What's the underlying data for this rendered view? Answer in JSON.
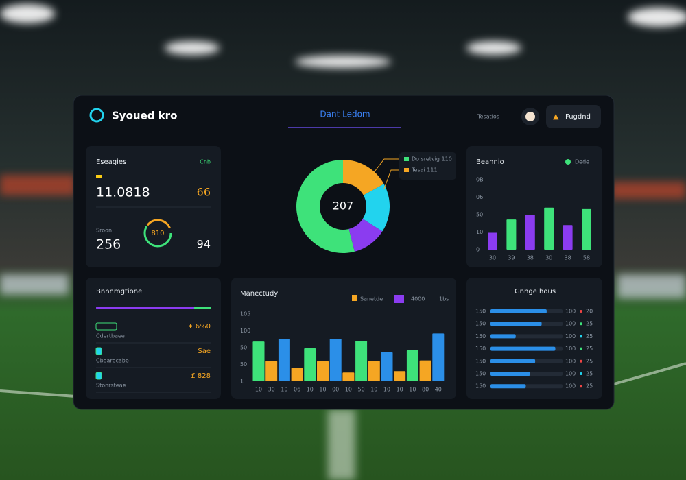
{
  "header": {
    "brand": "Syoued kro",
    "tab": "Dant Ledom",
    "info": "Tesatios",
    "button": "Fugdnd"
  },
  "stats": {
    "title": "Eseagies",
    "badge": "Cnb",
    "value1": "11.0818",
    "value1b": "66",
    "label2": "Sroon",
    "value2": "256",
    "ring": "810",
    "value2b": "94"
  },
  "donut": {
    "center": "207",
    "legend": [
      "Do sretvig 110",
      "Tesai 111"
    ],
    "segments": [
      {
        "color": "#f5a623",
        "value": 17
      },
      {
        "color": "#22d3ee",
        "value": 17
      },
      {
        "color": "#8b3cf0",
        "value": 12
      },
      {
        "color": "#3ee27a",
        "value": 54
      }
    ]
  },
  "pairs": {
    "title": "Beannio",
    "legend": "Dede",
    "axis_labels": [
      "0B",
      "06",
      "50",
      "10",
      "0"
    ],
    "ylim": [
      0,
      100
    ],
    "bars": [
      {
        "label": "30",
        "color": "#8b3cf0",
        "value": 24
      },
      {
        "label": "39",
        "color": "#3ee27a",
        "value": 43
      },
      {
        "label": "38",
        "color": "#8b3cf0",
        "value": 50
      },
      {
        "label": "30",
        "color": "#3ee27a",
        "value": 60
      },
      {
        "label": "38",
        "color": "#8b3cf0",
        "value": 35
      },
      {
        "label": "58",
        "color": "#3ee27a",
        "value": 58
      }
    ]
  },
  "list": {
    "title": "Bnnnmgtione",
    "rows": [
      {
        "left": "Cdertbaee",
        "right": "₤ 6%0"
      },
      {
        "left": "Cboarecabe",
        "right": "Sae"
      },
      {
        "left": "Stonrsteae",
        "right": "₤ 828"
      }
    ]
  },
  "monthly": {
    "title": "Manectudy",
    "legend": [
      {
        "name": "Sanetde",
        "color": "#f5a623"
      },
      {
        "name": "4000",
        "color": "#8b3cf0"
      }
    ],
    "note": "1bs",
    "axis_labels": [
      "105",
      "100",
      "50",
      "50",
      "1"
    ],
    "ylim": [
      0,
      100
    ],
    "bars": [
      {
        "label": "10",
        "color": "#3ee27a",
        "value": 59
      },
      {
        "label": "30",
        "color": "#f5a623",
        "value": 30
      },
      {
        "label": "10",
        "color": "#2b8fe8",
        "value": 63
      },
      {
        "label": "06",
        "color": "#f5a623",
        "value": 20
      },
      {
        "label": "10",
        "color": "#3ee27a",
        "value": 49
      },
      {
        "label": "10",
        "color": "#f5a623",
        "value": 30
      },
      {
        "label": "00",
        "color": "#2b8fe8",
        "value": 63
      },
      {
        "label": "10",
        "color": "#f5a623",
        "value": 13
      },
      {
        "label": "50",
        "color": "#3ee27a",
        "value": 60
      },
      {
        "label": "10",
        "color": "#f5a623",
        "value": 30
      },
      {
        "label": "10",
        "color": "#2b8fe8",
        "value": 43
      },
      {
        "label": "10",
        "color": "#f5a623",
        "value": 15
      },
      {
        "label": "10",
        "color": "#3ee27a",
        "value": 46
      },
      {
        "label": "80",
        "color": "#f5a623",
        "value": 31
      },
      {
        "label": "40",
        "color": "#2b8fe8",
        "value": 71
      }
    ]
  },
  "hours": {
    "title": "Gnnge hous",
    "rows": [
      {
        "label": "150",
        "value": 78,
        "end": "100",
        "tag": "20",
        "tagcolor": "#ef4444"
      },
      {
        "label": "150",
        "value": 71,
        "end": "100",
        "tag": "25",
        "tagcolor": "#3ee27a"
      },
      {
        "label": "150",
        "value": 35,
        "end": "100",
        "tag": "25",
        "tagcolor": "#22d3ee"
      },
      {
        "label": "150",
        "value": 90,
        "end": "100",
        "tag": "25",
        "tagcolor": "#3ee27a"
      },
      {
        "label": "150",
        "value": 62,
        "end": "100",
        "tag": "25",
        "tagcolor": "#ef4444"
      },
      {
        "label": "150",
        "value": 55,
        "end": "100",
        "tag": "25",
        "tagcolor": "#22d3ee"
      },
      {
        "label": "150",
        "value": 49,
        "end": "100",
        "tag": "25",
        "tagcolor": "#ef4444"
      }
    ]
  }
}
